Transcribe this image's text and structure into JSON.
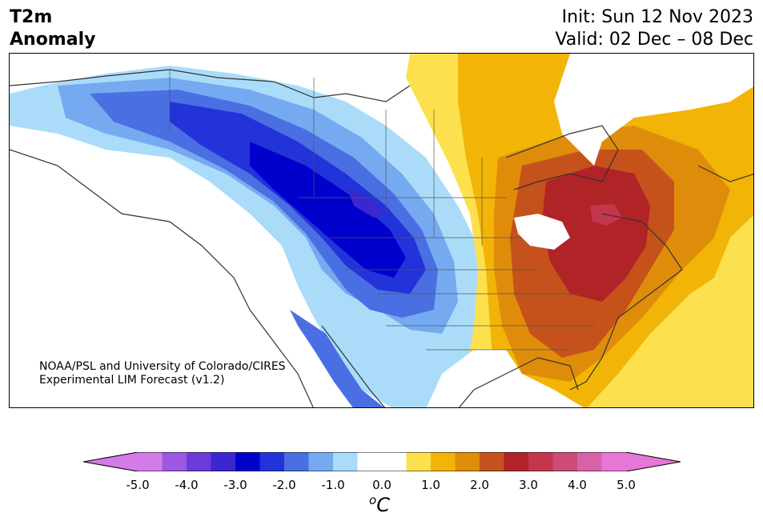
{
  "title": {
    "left_line1": "T2m",
    "left_line2": "Anomaly",
    "right_line1": "Init: Sun 12 Nov 2023",
    "right_line2": "Valid: 02 Dec – 08 Dec"
  },
  "credit": {
    "line1": "NOAA/PSL and University of Colorado/CIRES",
    "line2": "Experimental LIM Forecast (v1.2)"
  },
  "colorbar": {
    "ticks": [
      "-5.0",
      "-4.0",
      "-3.0",
      "-2.0",
      "-1.0",
      "0.0",
      "1.0",
      "2.0",
      "3.0",
      "4.0",
      "5.0"
    ],
    "unit_base": "C",
    "unit_sup": "o",
    "colors": [
      "#d47bea",
      "#9c58e2",
      "#6a3bd8",
      "#3a27cf",
      "#0000cd",
      "#2233d9",
      "#4a6fe3",
      "#75aaf1",
      "#aadcfa",
      "#ffffff",
      "#ffffff",
      "#fde04d",
      "#f2b406",
      "#e08c0b",
      "#c4521a",
      "#b02327",
      "#c4364c",
      "#cc4c75",
      "#d862a8",
      "#e677d7"
    ],
    "extend_low": "#d47bea",
    "extend_high": "#e677d7"
  }
}
